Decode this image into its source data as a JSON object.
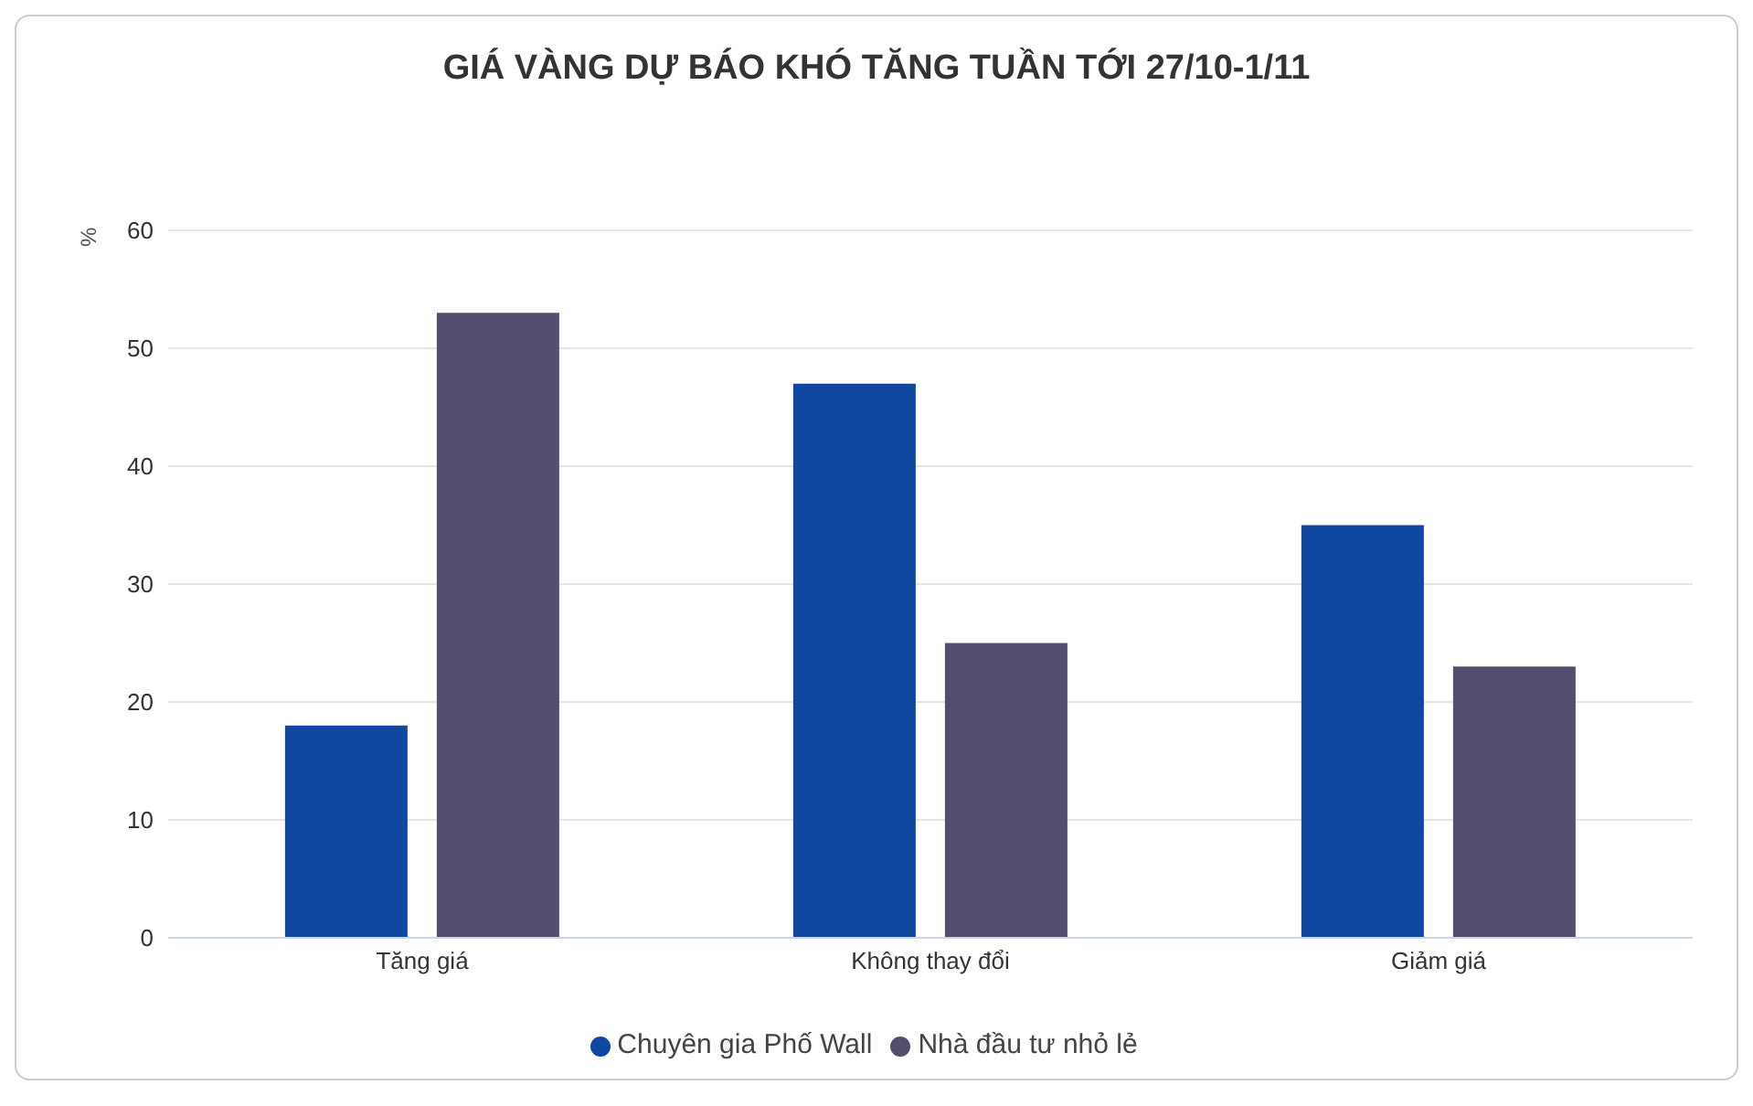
{
  "chart_data": {
    "type": "bar",
    "title": "GIÁ VÀNG DỰ BÁO KHÓ TĂNG TUẦN TỚI 27/10-1/11",
    "ylabel": "%",
    "categories": [
      "Tăng giá",
      "Không thay đổi",
      "Giảm giá"
    ],
    "series": [
      {
        "name": "Chuyên gia Phố Wall",
        "color": "#0f47a1",
        "values": [
          18,
          47,
          35
        ]
      },
      {
        "name": "Nhà đầu tư nhỏ lẻ",
        "color": "#544d6e",
        "values": [
          53,
          25,
          23
        ]
      }
    ],
    "ylim": [
      0,
      60
    ],
    "yticks": [
      0,
      10,
      20,
      30,
      40,
      50,
      60
    ],
    "grid": "y",
    "legend": "bottom"
  }
}
